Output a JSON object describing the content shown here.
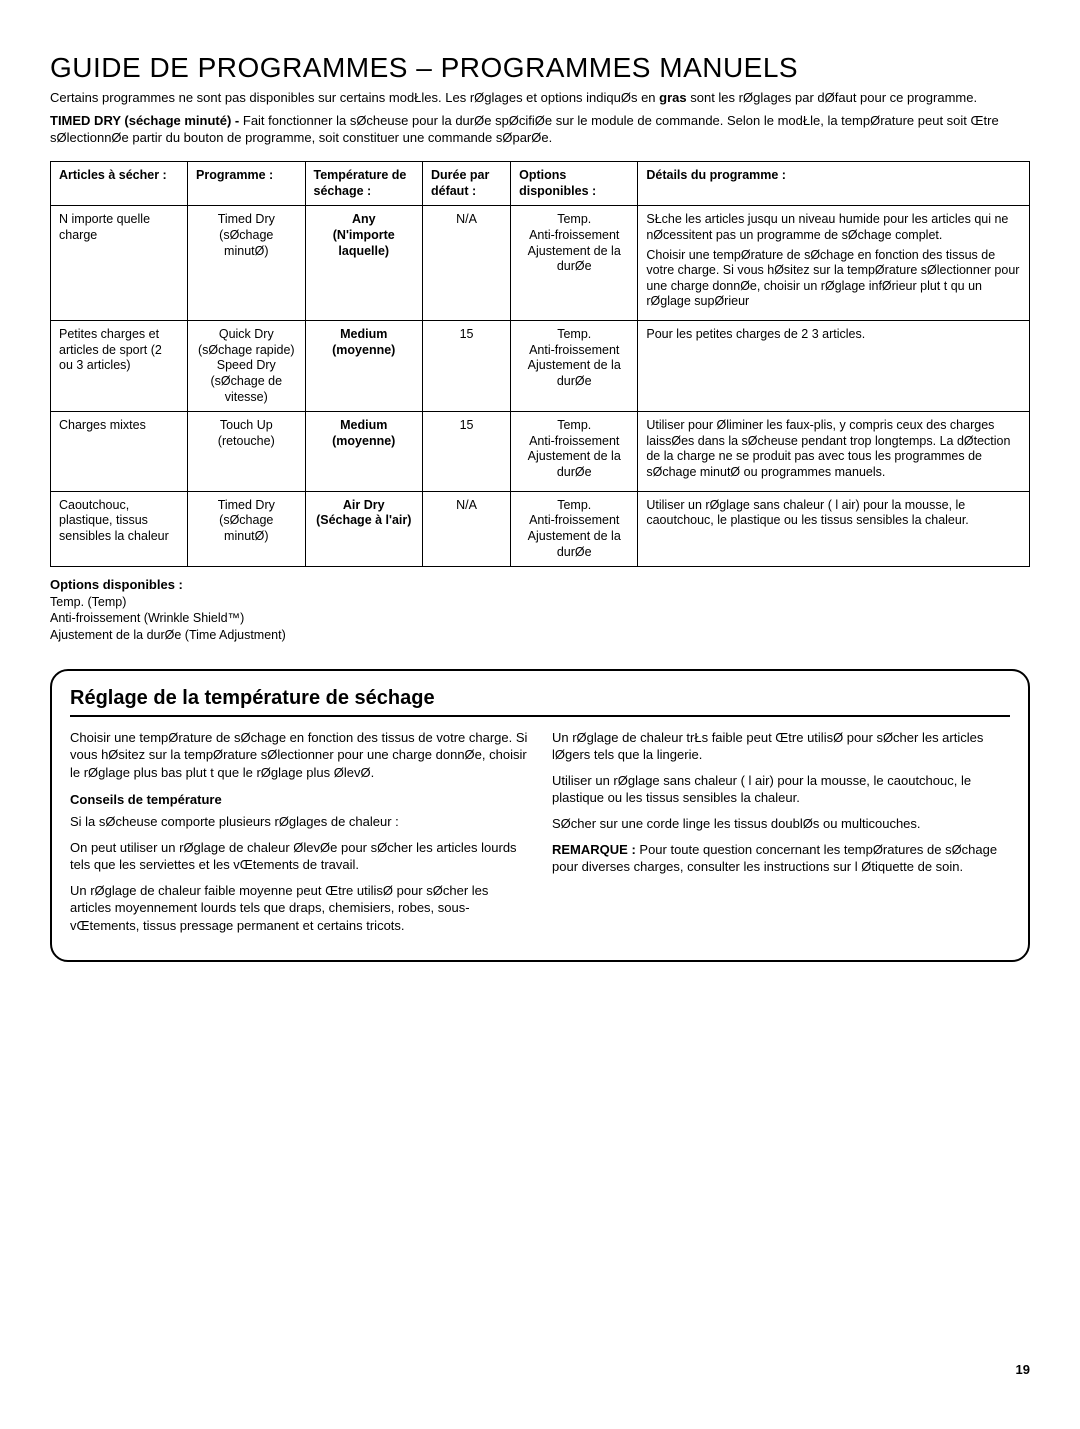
{
  "title": "GUIDE DE PROGRAMMES – PROGRAMMES MANUELS",
  "intro_line1_a": "Certains programmes ne sont pas disponibles sur certains modŁles. Les rØglages et options indiquØs en ",
  "intro_line1_bold": "gras",
  "intro_line1_b": " sont les rØglages par dØfaut pour ce programme.",
  "timed_dry_bold": "TIMED DRY (séchage minuté) - ",
  "timed_dry_text": "Fait fonctionner la sØcheuse pour la durØe spØciﬁØe sur le module de commande. Selon le modŁle, la tempØrature peut soit Œtre sØlectionnØe  partir du bouton de programme, soit constituer une commande sØparØe.",
  "headers": {
    "articles": "Articles à sécher :",
    "programme": "Programme :",
    "temperature": "Température de séchage :",
    "duree": "Durée par défaut :",
    "options": "Options disponibles :",
    "details": "Détails du programme :"
  },
  "rows": [
    {
      "articles": "N importe quelle charge",
      "programme": "Timed Dry (sØchage minutØ)",
      "temp1": "Any",
      "temp2": "(N'importe laquelle)",
      "duree": "N/A",
      "options": "Temp.\nAnti-froissement\nAjustement de la durØe",
      "details": "SŁche les articles jusqu un niveau humide pour les articles qui ne nØcessitent pas un programme de sØchage complet.\nChoisir une tempØrature de sØchage en fonction des tissus de votre charge. Si vous hØsitez sur la tempØrature  sØlectionner pour une charge donnØe, choisir un rØglage infØrieur plut t qu un rØglage supØrieur"
    },
    {
      "articles": "Petites charges et articles de sport (2 ou 3 articles)",
      "programme": "Quick Dry (sØchage rapide) Speed Dry (sØchage de vitesse)",
      "temp1": "Medium",
      "temp2": "(moyenne)",
      "duree": "15",
      "options": "Temp.\nAnti-froissement\nAjustement de la durØe",
      "details": "Pour les petites charges de 2  3 articles."
    },
    {
      "articles": "Charges mixtes",
      "programme": "Touch Up (retouche)",
      "temp1": "Medium",
      "temp2": "(moyenne)",
      "duree": "15",
      "options": "Temp.\nAnti-froissement\nAjustement de la durØe",
      "details": "Utiliser pour Øliminer les faux-plis, y compris ceux des charges laissØes dans la sØcheuse pendant trop longtemps. La dØtection de la charge ne se produit pas avec tous les programmes de sØchage minutØ ou programmes manuels."
    },
    {
      "articles": "Caoutchouc, plastique, tissus sensibles  la chaleur",
      "programme": "Timed Dry (sØchage minutØ)",
      "temp1": "Air Dry",
      "temp2": "(Séchage à l'air)",
      "duree": "N/A",
      "options": "Temp.\nAnti-froissement\nAjustement de la durØe",
      "details": "Utiliser un rØglage sans chaleur ( l air) pour la mousse, le caoutchouc, le plastique ou les tissus sensibles  la chaleur."
    }
  ],
  "options_section": {
    "heading": "Options disponibles :",
    "line1": "Temp. (Temp)",
    "line2": "Anti-froissement (Wrinkle Shield™)",
    "line3": "Ajustement de la durØe (Time Adjustment)"
  },
  "settings": {
    "title": "Réglage de la température de séchage",
    "left_p1": "Choisir une tempØrature de sØchage en fonction des tissus de votre charge. Si vous hØsitez sur la tempØrature  sØlectionner pour une charge donnØe, choisir le rØglage plus bas plut t que le rØglage plus ØlevØ.",
    "left_sub": "Conseils de température",
    "left_p2": "Si la sØcheuse comporte plusieurs rØglages de chaleur :",
    "left_p3": "On peut utiliser un rØglage de chaleur ØlevØe pour sØcher les articles lourds tels que les serviettes et les vŒtements de travail.",
    "left_p4": "Un rØglage de chaleur faible  moyenne peut Œtre utilisØ pour sØcher les articles moyennement lourds tels que draps, chemisiers, robes, sous-vŒtements, tissus  pressage permanent et certains tricots.",
    "right_p1": "Un rØglage de chaleur trŁs faible peut Œtre utilisØ pour sØcher les articles lØgers tels que la lingerie.",
    "right_p2": "Utiliser un rØglage sans chaleur ( l air) pour la mousse, le caoutchouc, le plastique ou les tissus sensibles  la chaleur.",
    "right_p3": "SØcher sur une corde  linge les tissus doublØs ou multicouches.",
    "right_remark_bold": "REMARQUE :",
    "right_remark": " Pour toute question concernant les tempØratures de sØchage pour diverses charges, consulter les instructions sur l Øtiquette de soin."
  },
  "page_number": "19"
}
